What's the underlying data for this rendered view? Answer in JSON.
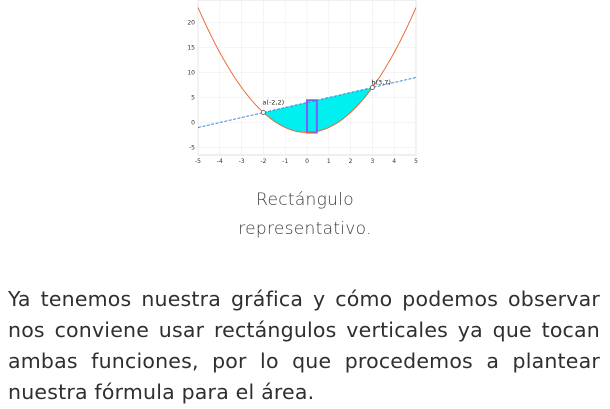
{
  "figure": {
    "y_ticks": [
      "20",
      "15",
      "10",
      "5",
      "0",
      "-5"
    ],
    "x_ticks": [
      "-5",
      "-4",
      "-3",
      "-2",
      "-1",
      "0",
      "1",
      "2",
      "3",
      "4",
      "5"
    ],
    "point_a_label": "a(-2,2)",
    "point_b_label": "b(3,7)",
    "colors": {
      "parabola": "#e8602c",
      "line": "#2a7fd4",
      "fill": "#00f0f0",
      "rectangle": "#7a5cff"
    }
  },
  "caption": {
    "line1": "Rectángulo",
    "line2": "representativo."
  },
  "paragraph": {
    "text": "Ya tenemos nuestra gráfica y cómo podemos observar nos conviene usar rectángulos verticales ya que tocan ambas funciones, por lo que procedemos a plantear nuestra fórmula para el área."
  }
}
